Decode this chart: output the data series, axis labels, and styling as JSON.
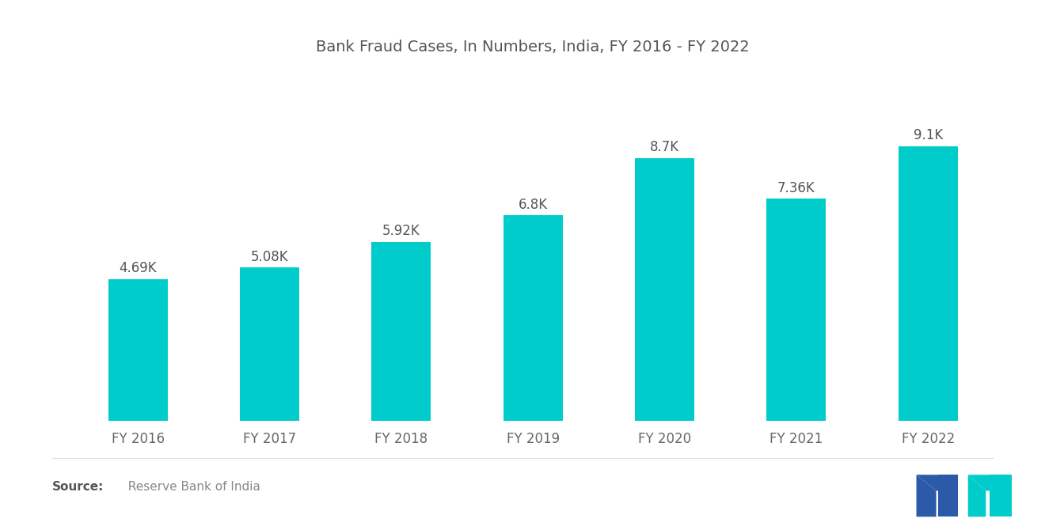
{
  "title": "Bank Fraud Cases, In Numbers, India, FY 2016 - FY 2022",
  "categories": [
    "FY 2016",
    "FY 2017",
    "FY 2018",
    "FY 2019",
    "FY 2020",
    "FY 2021",
    "FY 2022"
  ],
  "values": [
    4.69,
    5.08,
    5.92,
    6.8,
    8.7,
    7.36,
    9.1
  ],
  "labels": [
    "4.69K",
    "5.08K",
    "5.92K",
    "6.8K",
    "8.7K",
    "7.36K",
    "9.1K"
  ],
  "bar_color": "#00CCCC",
  "background_color": "#FFFFFF",
  "title_color": "#555555",
  "label_color": "#555555",
  "xtick_color": "#666666",
  "source_bold": "Source:",
  "source_text": "  Reserve Bank of India",
  "source_color": "#888888",
  "title_fontsize": 14,
  "label_fontsize": 12,
  "xtick_fontsize": 12,
  "source_fontsize": 11,
  "ylim": [
    0,
    11.5
  ],
  "bar_width": 0.45,
  "logo_blue": "#2B5BA8",
  "logo_teal": "#00CCCC"
}
